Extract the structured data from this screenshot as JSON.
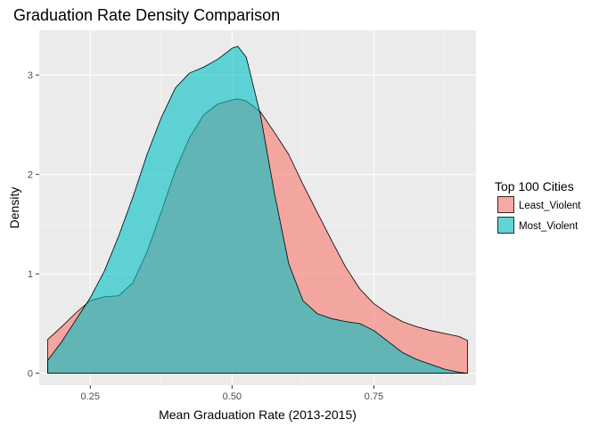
{
  "chart_data": {
    "type": "area",
    "title": "Graduation Rate Density Comparison",
    "xlabel": "Mean Graduation Rate (2013-2015)",
    "ylabel": "Density",
    "xlim": [
      0.16,
      0.93
    ],
    "ylim": [
      -0.12,
      3.45
    ],
    "x_ticks": [
      0.25,
      0.5,
      0.75
    ],
    "x_tick_labels": [
      "0.25",
      "0.50",
      "0.75"
    ],
    "y_ticks": [
      0,
      1,
      2,
      3
    ],
    "y_tick_labels": [
      "0",
      "1",
      "2",
      "3"
    ],
    "grid": true,
    "legend": {
      "title": "Top 100 Cities",
      "position": "right"
    },
    "series": [
      {
        "name": "Least_Violent",
        "color": "#F8766D",
        "x": [
          0.175,
          0.2,
          0.225,
          0.25,
          0.275,
          0.3,
          0.325,
          0.35,
          0.375,
          0.4,
          0.425,
          0.45,
          0.475,
          0.5,
          0.51,
          0.525,
          0.55,
          0.575,
          0.6,
          0.625,
          0.65,
          0.675,
          0.7,
          0.725,
          0.75,
          0.775,
          0.8,
          0.825,
          0.85,
          0.875,
          0.9,
          0.915
        ],
        "values": [
          0.34,
          0.47,
          0.61,
          0.73,
          0.77,
          0.78,
          0.91,
          1.22,
          1.62,
          2.04,
          2.37,
          2.6,
          2.71,
          2.75,
          2.76,
          2.74,
          2.63,
          2.42,
          2.2,
          1.9,
          1.62,
          1.34,
          1.07,
          0.85,
          0.7,
          0.6,
          0.52,
          0.47,
          0.43,
          0.4,
          0.37,
          0.33
        ]
      },
      {
        "name": "Most_Violent",
        "color": "#00BFC4",
        "x": [
          0.175,
          0.2,
          0.225,
          0.25,
          0.275,
          0.3,
          0.325,
          0.35,
          0.375,
          0.4,
          0.425,
          0.45,
          0.475,
          0.5,
          0.51,
          0.525,
          0.55,
          0.575,
          0.6,
          0.625,
          0.65,
          0.675,
          0.7,
          0.725,
          0.75,
          0.775,
          0.8,
          0.825,
          0.85,
          0.875,
          0.9,
          0.915
        ],
        "values": [
          0.13,
          0.32,
          0.54,
          0.76,
          1.03,
          1.38,
          1.77,
          2.2,
          2.57,
          2.87,
          3.02,
          3.08,
          3.16,
          3.27,
          3.29,
          3.18,
          2.6,
          1.8,
          1.1,
          0.73,
          0.6,
          0.55,
          0.52,
          0.5,
          0.43,
          0.32,
          0.21,
          0.14,
          0.09,
          0.04,
          0.01,
          0.0
        ]
      }
    ]
  }
}
